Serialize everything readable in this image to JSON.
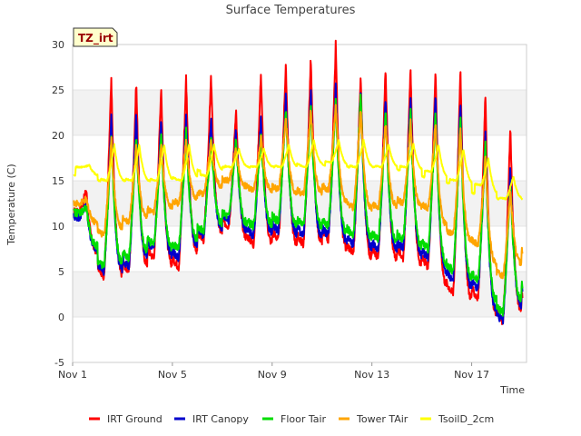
{
  "chart_data": {
    "type": "line",
    "title": "Surface Temperatures",
    "badge": "TZ_irt",
    "xlabel": "Time",
    "ylabel": "Temperature (C)",
    "xlim": [
      1,
      19.2
    ],
    "ylim": [
      -5,
      30
    ],
    "yticks": [
      -5,
      0,
      5,
      10,
      15,
      20,
      25,
      30
    ],
    "xticks": [
      {
        "value": 1,
        "label": "Nov 1"
      },
      {
        "value": 5,
        "label": "Nov 5"
      },
      {
        "value": 9,
        "label": "Nov 9"
      },
      {
        "value": 13,
        "label": "Nov 13"
      },
      {
        "value": 17,
        "label": "Nov 17"
      }
    ],
    "grid": "horizontal bands",
    "legend_position": "bottom",
    "daily_note": "peak/min values read per day (x in days, Nov 1 = 1)",
    "series": [
      {
        "name": "IRT Ground",
        "color": "#ff0000",
        "mins": [
          11.5,
          4.5,
          5.0,
          6.5,
          5.5,
          8.5,
          10.0,
          8.0,
          8.5,
          8.0,
          8.5,
          7.0,
          6.5,
          6.5,
          5.5,
          2.5,
          2.0,
          -0.5,
          1.5
        ],
        "maxs": [
          14.0,
          26.5,
          26.0,
          25.5,
          26.5,
          26.5,
          23.0,
          27.0,
          28.0,
          28.5,
          30.0,
          27.0,
          27.5,
          27.5,
          27.5,
          27.5,
          24.5,
          21.0,
          21.0
        ]
      },
      {
        "name": "IRT Canopy",
        "color": "#0000cc",
        "mins": [
          11.0,
          5.0,
          5.5,
          7.5,
          6.5,
          9.0,
          10.5,
          9.0,
          9.5,
          9.0,
          9.0,
          8.0,
          7.5,
          7.5,
          6.5,
          4.0,
          3.0,
          -0.5,
          2.5
        ],
        "maxs": [
          12.5,
          22.0,
          22.5,
          22.0,
          22.5,
          22.0,
          20.5,
          22.0,
          24.5,
          25.0,
          25.5,
          25.0,
          24.0,
          24.5,
          24.5,
          24.0,
          20.0,
          16.5,
          16.0
        ]
      },
      {
        "name": "Floor Tair",
        "color": "#00dd00",
        "mins": [
          11.5,
          5.5,
          6.5,
          8.0,
          7.5,
          9.5,
          11.0,
          10.0,
          10.5,
          10.0,
          10.0,
          9.0,
          8.5,
          8.5,
          7.5,
          5.0,
          4.0,
          0.5,
          3.0
        ],
        "maxs": [
          12.0,
          20.0,
          20.0,
          20.0,
          20.5,
          20.0,
          19.5,
          20.5,
          23.0,
          23.5,
          24.0,
          24.5,
          22.5,
          22.5,
          22.5,
          22.0,
          19.0,
          15.0,
          14.5
        ]
      },
      {
        "name": "Tower TAir",
        "color": "#ffa500",
        "mins": [
          12.5,
          9.0,
          10.5,
          11.5,
          12.5,
          13.5,
          15.0,
          14.0,
          14.0,
          13.5,
          14.0,
          12.0,
          12.0,
          12.5,
          12.0,
          9.0,
          8.0,
          4.5,
          7.0
        ],
        "maxs": [
          13.0,
          19.5,
          19.0,
          19.0,
          19.5,
          19.5,
          18.5,
          20.0,
          22.0,
          23.0,
          23.5,
          23.0,
          21.5,
          21.5,
          21.5,
          21.0,
          17.5,
          14.0,
          13.5
        ]
      },
      {
        "name": "TsoilD_2cm",
        "color": "#ffff00",
        "mins": [
          16.5,
          15.0,
          15.0,
          15.0,
          15.0,
          15.5,
          16.5,
          16.5,
          16.5,
          16.5,
          17.0,
          16.5,
          16.5,
          16.5,
          16.0,
          15.0,
          14.5,
          13.0,
          13.0
        ],
        "maxs": [
          16.7,
          19.0,
          19.0,
          19.0,
          19.0,
          19.0,
          18.5,
          18.5,
          19.0,
          19.5,
          19.5,
          19.5,
          19.0,
          19.0,
          19.0,
          18.5,
          17.5,
          15.5,
          15.0
        ]
      }
    ]
  }
}
